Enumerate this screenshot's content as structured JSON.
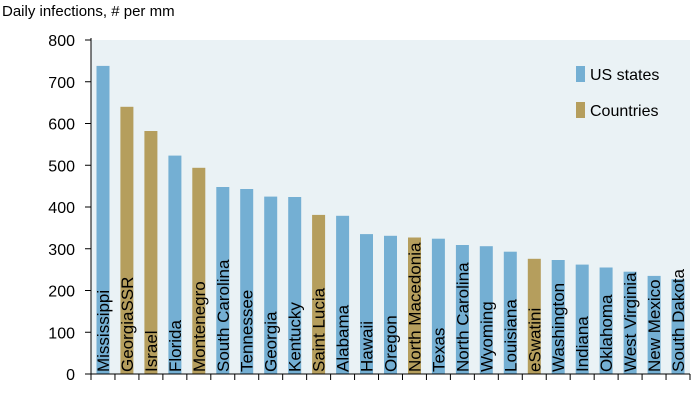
{
  "chart_data": {
    "type": "bar",
    "subtitle": "Daily infections, # per mm",
    "categories": [
      "Mississippi",
      "GeorgiaSSR",
      "Israel",
      "Florida",
      "Montenegro",
      "South Carolina",
      "Tennessee",
      "Georgia",
      "Kentucky",
      "Saint Lucia",
      "Alabama",
      "Hawaii",
      "Oregon",
      "North Macedonia",
      "Texas",
      "North Carolina",
      "Wyoming",
      "Louisiana",
      "eSwatini",
      "Washington",
      "Indiana",
      "Oklahoma",
      "West Virginia",
      "New Mexico",
      "South Dakota"
    ],
    "values": [
      738,
      640,
      582,
      523,
      494,
      448,
      443,
      425,
      424,
      381,
      379,
      335,
      331,
      327,
      324,
      309,
      306,
      293,
      276,
      273,
      262,
      255,
      245,
      235,
      227
    ],
    "groups": [
      "US states",
      "Countries",
      "Countries",
      "US states",
      "Countries",
      "US states",
      "US states",
      "US states",
      "US states",
      "Countries",
      "US states",
      "US states",
      "US states",
      "Countries",
      "US states",
      "US states",
      "US states",
      "US states",
      "Countries",
      "US states",
      "US states",
      "US states",
      "US states",
      "US states",
      "US states"
    ],
    "legend": [
      {
        "name": "US states",
        "color": "#74afd3"
      },
      {
        "name": "Countries",
        "color": "#b59e5d"
      }
    ],
    "legend_position": "top-right",
    "ylim": [
      0,
      800
    ],
    "yticks": [
      0,
      100,
      200,
      300,
      400,
      500,
      600,
      700,
      800
    ],
    "plot_background": "#eaf2f5",
    "grid": false
  }
}
